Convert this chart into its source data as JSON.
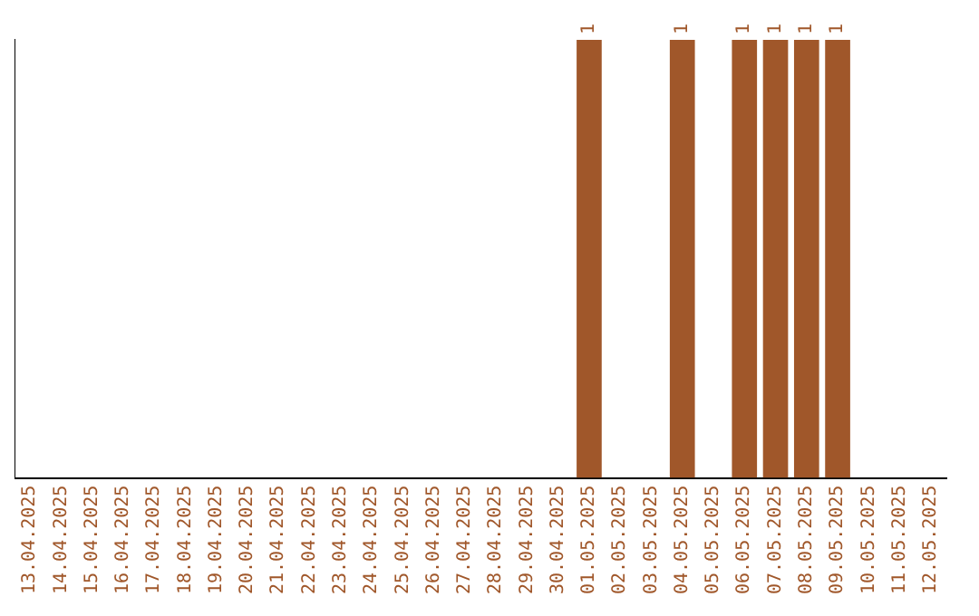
{
  "chart_data": {
    "type": "bar",
    "categories": [
      "13.04.2025",
      "14.04.2025",
      "15.04.2025",
      "16.04.2025",
      "17.04.2025",
      "18.04.2025",
      "19.04.2025",
      "20.04.2025",
      "21.04.2025",
      "22.04.2025",
      "23.04.2025",
      "24.04.2025",
      "25.04.2025",
      "26.04.2025",
      "27.04.2025",
      "28.04.2025",
      "29.04.2025",
      "30.04.2025",
      "01.05.2025",
      "02.05.2025",
      "03.05.2025",
      "04.05.2025",
      "05.05.2025",
      "06.05.2025",
      "07.05.2025",
      "08.05.2025",
      "09.05.2025",
      "10.05.2025",
      "11.05.2025",
      "12.05.2025"
    ],
    "values": [
      null,
      null,
      null,
      null,
      null,
      null,
      null,
      null,
      null,
      null,
      null,
      null,
      null,
      null,
      null,
      null,
      null,
      null,
      1,
      null,
      null,
      1,
      null,
      1,
      1,
      1,
      1,
      null,
      null,
      null
    ],
    "color": "#a0572a",
    "data_labels": true,
    "grid": false,
    "legend": false,
    "tick_labels": "x"
  }
}
